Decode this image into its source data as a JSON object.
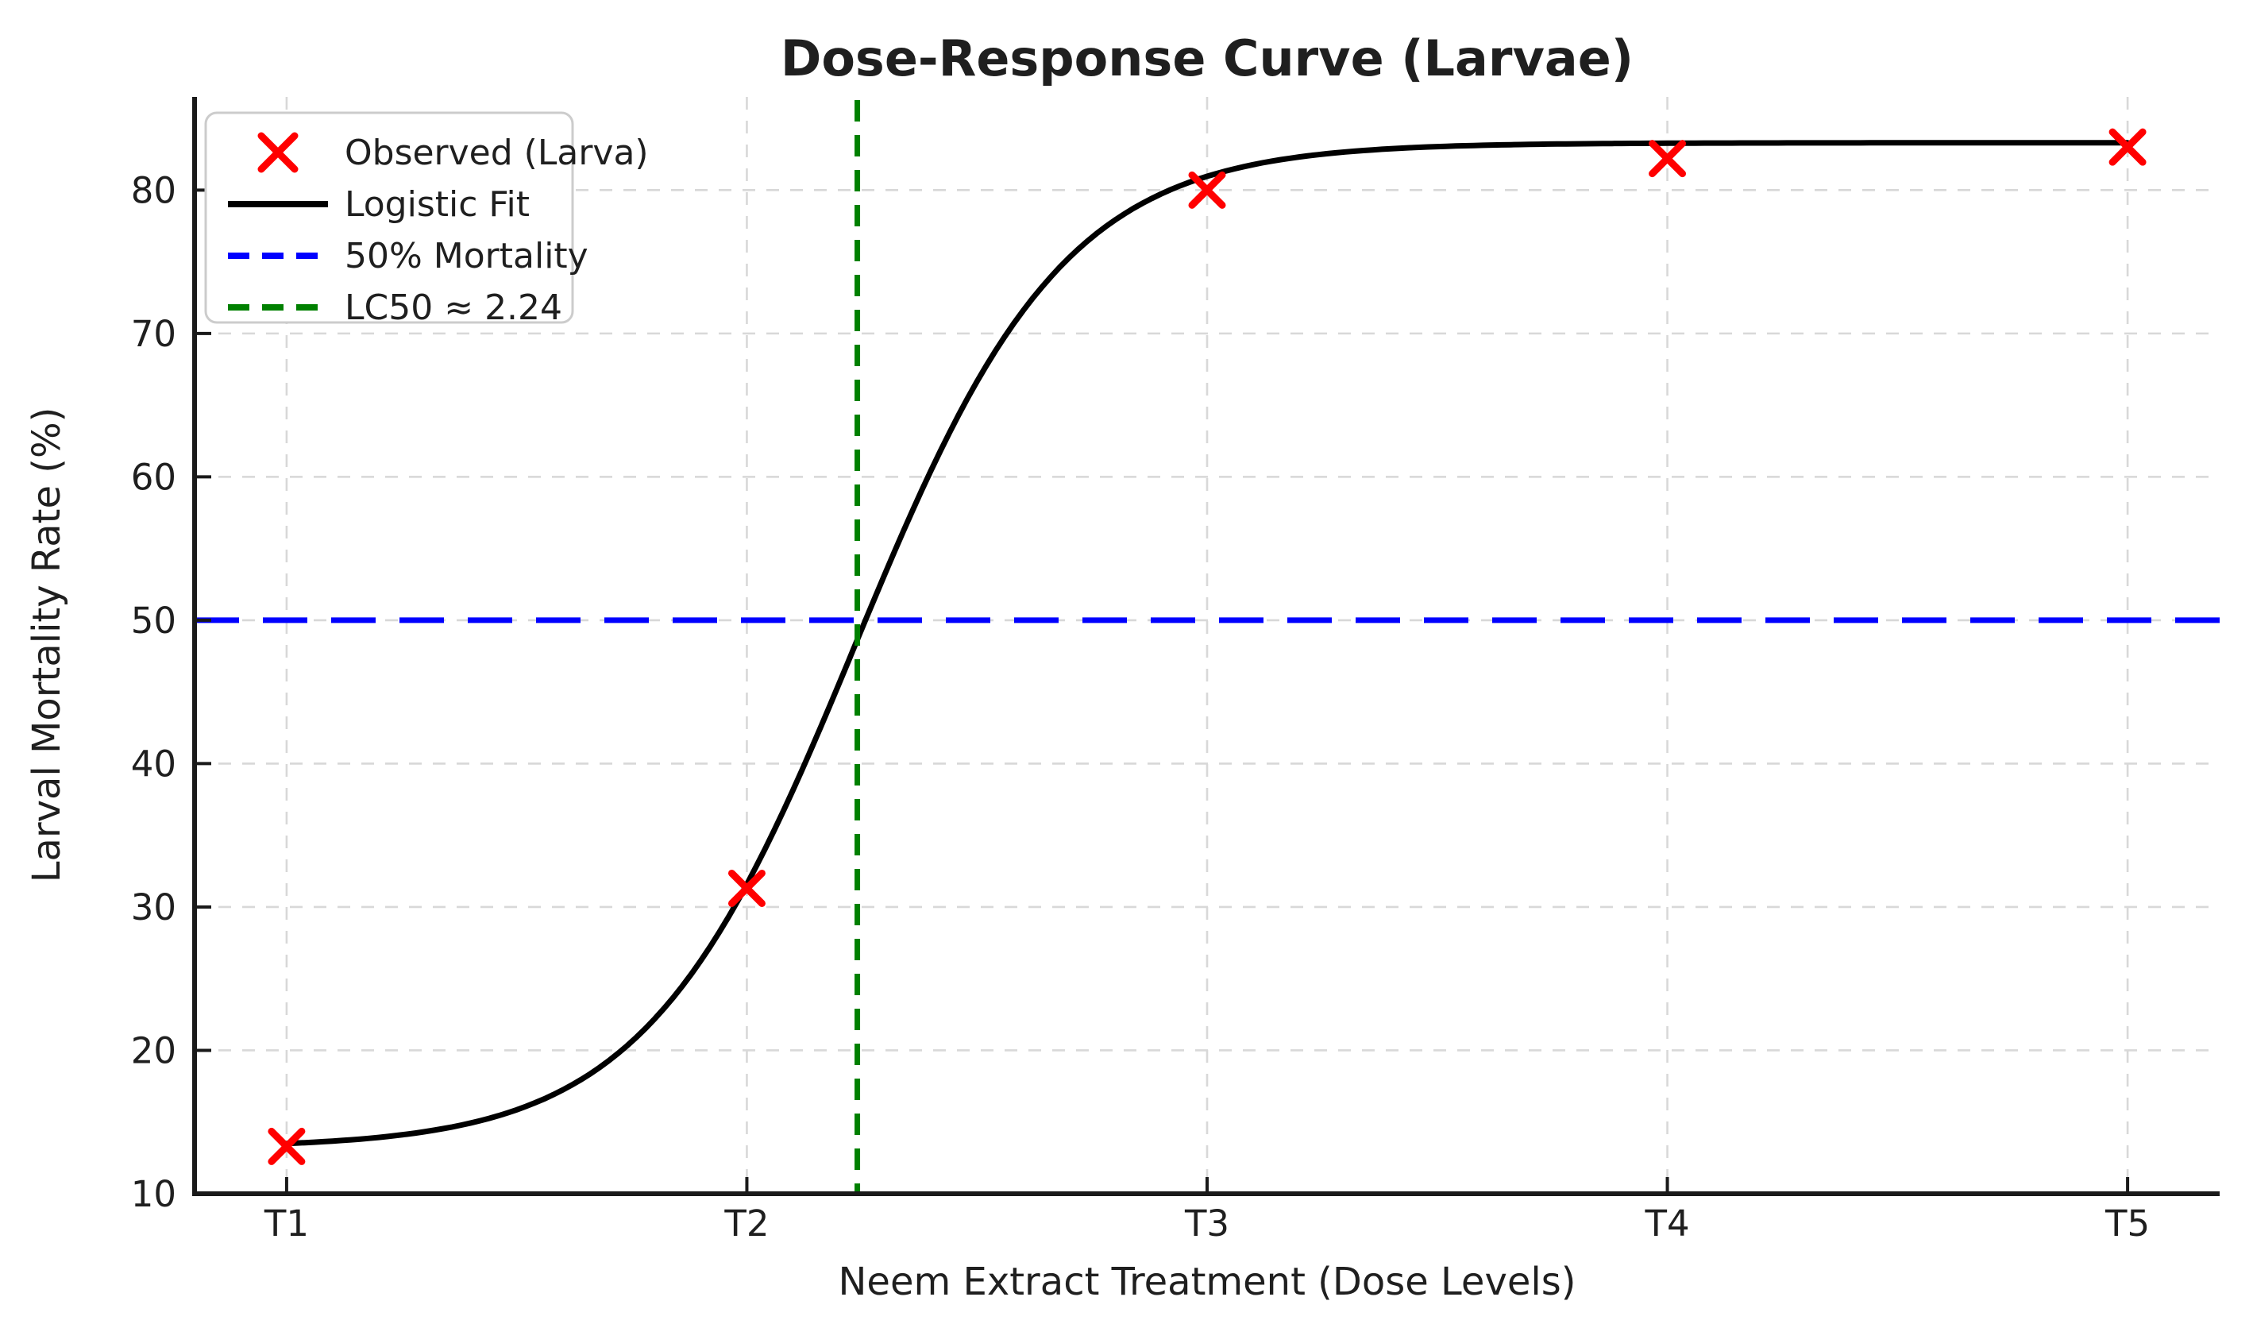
{
  "chart_data": {
    "type": "line",
    "title": "Dose-Response Curve (Larvae)",
    "xlabel": "Neem Extract Treatment (Dose Levels)",
    "ylabel": "Larval Mortality Rate (%)",
    "x_tick_labels": [
      "T1",
      "T2",
      "T3",
      "T4",
      "T5"
    ],
    "x_positions": [
      1,
      2,
      3,
      4,
      5
    ],
    "y_ticks": [
      10,
      20,
      30,
      40,
      50,
      60,
      70,
      80
    ],
    "xlim": [
      0.8,
      5.2
    ],
    "ylim": [
      10,
      86.5
    ],
    "grid": true,
    "grid_style": "dashed",
    "legend_position": "upper left",
    "series": [
      {
        "name": "Observed (Larva)",
        "kind": "scatter",
        "marker": "x",
        "color": "#ff0000",
        "x": [
          1,
          2,
          3,
          4,
          5
        ],
        "y": [
          13.3,
          31.3,
          80.0,
          82.2,
          83.0
        ]
      },
      {
        "name": "Logistic Fit",
        "kind": "curve",
        "color": "#000000",
        "line_style": "solid",
        "model": "logistic",
        "params": {
          "bottom": 13.2,
          "top": 83.3,
          "x0": 2.235,
          "k": 4.4
        },
        "x_range": [
          1,
          5
        ]
      },
      {
        "name": "50% Mortality",
        "kind": "hline",
        "color": "#0000ff",
        "line_style": "dashed",
        "y": 50
      },
      {
        "name": "LC50 ≈ 2.24",
        "kind": "vline",
        "color": "#008000",
        "line_style": "dashed",
        "x": 2.24,
        "lc50_value": "2.24"
      }
    ]
  },
  "colors": {
    "background": "#ffffff",
    "spine": "#1a1a1a",
    "grid": "#d8d8d8",
    "text": "#1f1f1f",
    "legend_border": "#cccccc",
    "legend_fill": "#ffffff"
  }
}
